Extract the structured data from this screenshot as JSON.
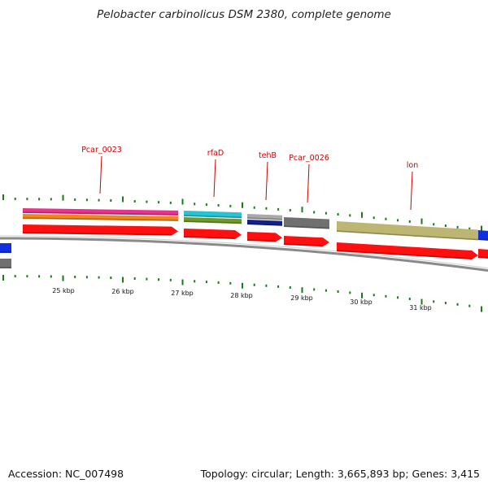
{
  "title": "Pelobacter carbinolicus DSM 2380, complete genome",
  "accession_label": "Accession: NC_007498",
  "summary_label": "Topology: circular; Length: 3,665,893 bp; Genes: 3,415",
  "colors": {
    "gene_label": "#cc0000",
    "tick": "#1a7a1a",
    "backbone": "#8a8a8a"
  },
  "gene_labels": [
    "Pcar_0023",
    "rfaD",
    "tehB",
    "Pcar_0026",
    "lon"
  ],
  "scale_labels": [
    "25 kbp",
    "26 kbp",
    "27 kbp",
    "28 kbp",
    "29 kbp",
    "30 kbp",
    "31 kbp"
  ]
}
